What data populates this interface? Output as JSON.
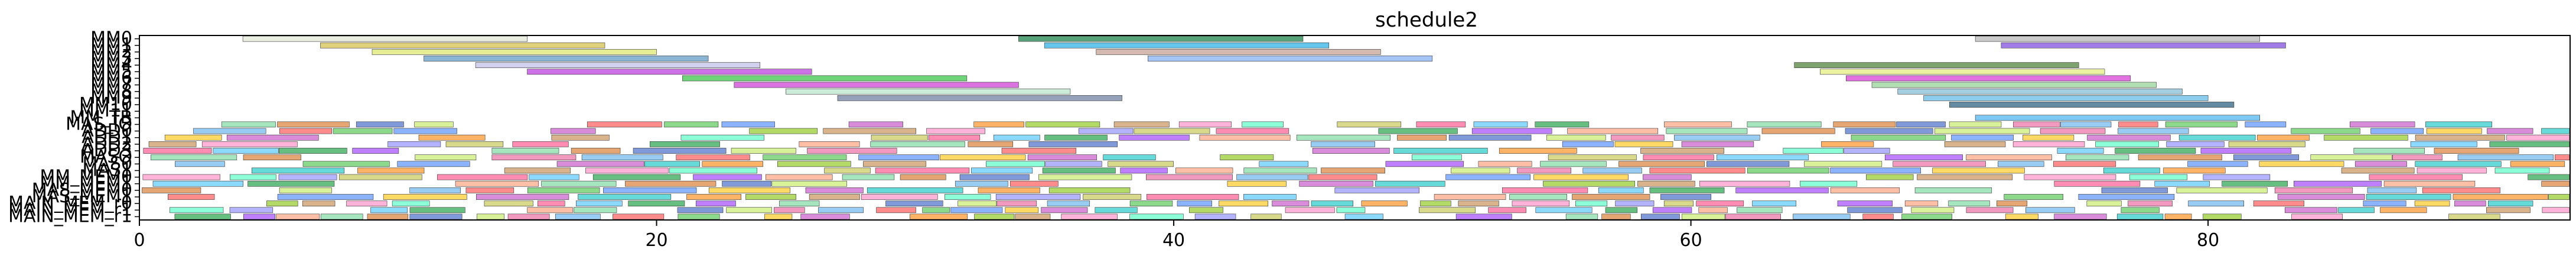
{
  "chart_data": {
    "type": "gantt",
    "title": "schedule2",
    "xlabel": "",
    "ylabel": "",
    "xlim": [
      0,
      94
    ],
    "grid": false,
    "x_ticks": [
      0,
      20,
      40,
      60,
      80
    ],
    "rows": [
      "MM0",
      "MM1",
      "MM2",
      "MM3",
      "MM4",
      "MM5",
      "MM6",
      "MM7",
      "MM8",
      "MM9",
      "MM10",
      "MM11",
      "MM_TB",
      "MAS_IO",
      "ADD0",
      "ADD1",
      "ADD2",
      "ADD3",
      "MASO",
      "MAS0",
      "MAS1",
      "MM_MEM0",
      "MM_MEM1",
      "MAS_MEM0",
      "MAS_MEM1",
      "MAIN_MEM_r0",
      "MAIN_MEM_r1",
      "MAIN_MEM_r1"
    ],
    "bars": [
      {
        "row": 0,
        "start": 4,
        "end": 15,
        "color": "#e5ead8"
      },
      {
        "row": 0,
        "start": 34,
        "end": 45,
        "color": "#2e8b57"
      },
      {
        "row": 0,
        "start": 71,
        "end": 82,
        "color": "#bdbdbd"
      },
      {
        "row": 1,
        "start": 7,
        "end": 18,
        "color": "#d7c65a"
      },
      {
        "row": 1,
        "start": 35,
        "end": 46,
        "color": "#3fb7e6"
      },
      {
        "row": 1,
        "start": 72,
        "end": 83,
        "color": "#8a5ae0"
      },
      {
        "row": 2,
        "start": 9,
        "end": 20,
        "color": "#dfe87a"
      },
      {
        "row": 2,
        "start": 37,
        "end": 48,
        "color": "#c9a79b"
      },
      {
        "row": 3,
        "start": 11,
        "end": 22,
        "color": "#6ea3c9"
      },
      {
        "row": 3,
        "start": 39,
        "end": 50,
        "color": "#8fb6f5"
      },
      {
        "row": 4,
        "start": 13,
        "end": 24,
        "color": "#c6c6e8"
      },
      {
        "row": 4,
        "start": 64,
        "end": 75,
        "color": "#5e8c4a"
      },
      {
        "row": 5,
        "start": 15,
        "end": 26,
        "color": "#c14ee0"
      },
      {
        "row": 5,
        "start": 65,
        "end": 76,
        "color": "#e7ef8a"
      },
      {
        "row": 6,
        "start": 21,
        "end": 32,
        "color": "#4cc95a"
      },
      {
        "row": 6,
        "start": 66,
        "end": 77,
        "color": "#d94fd7"
      },
      {
        "row": 7,
        "start": 23,
        "end": 34,
        "color": "#d14fd8"
      },
      {
        "row": 7,
        "start": 67,
        "end": 78,
        "color": "#9fd6a0"
      },
      {
        "row": 8,
        "start": 25,
        "end": 36,
        "color": "#bfe6cf"
      },
      {
        "row": 8,
        "start": 68,
        "end": 79,
        "color": "#8ec2d8"
      },
      {
        "row": 9,
        "start": 27,
        "end": 38,
        "color": "#7b8aa6"
      },
      {
        "row": 9,
        "start": 69,
        "end": 80,
        "color": "#6fc1e8"
      },
      {
        "row": 10,
        "start": 70,
        "end": 81,
        "color": "#3d6e8a"
      },
      {
        "row": 12,
        "start": 71,
        "end": 82,
        "color": "#5dbbf0"
      },
      {
        "row": 13,
        "start": 0,
        "end": 91,
        "color": "multi"
      },
      {
        "row": 14,
        "start": 0,
        "end": 94,
        "color": "multi"
      },
      {
        "row": 15,
        "start": 0,
        "end": 94,
        "color": "multi"
      },
      {
        "row": 16,
        "start": 0,
        "end": 94,
        "color": "multi"
      },
      {
        "row": 17,
        "start": 0,
        "end": 94,
        "color": "multi"
      },
      {
        "row": 18,
        "start": 0,
        "end": 94,
        "color": "multi"
      },
      {
        "row": 19,
        "start": 0,
        "end": 94,
        "color": "multi"
      },
      {
        "row": 20,
        "start": 0,
        "end": 94,
        "color": "multi"
      },
      {
        "row": 21,
        "start": 0,
        "end": 94,
        "color": "multi"
      },
      {
        "row": 22,
        "start": 0,
        "end": 94,
        "color": "multi"
      },
      {
        "row": 23,
        "start": 0,
        "end": 94,
        "color": "multi"
      },
      {
        "row": 24,
        "start": 0,
        "end": 94,
        "color": "multi"
      },
      {
        "row": 25,
        "start": 0,
        "end": 94,
        "color": "multi"
      },
      {
        "row": 26,
        "start": 0,
        "end": 94,
        "color": "multi"
      },
      {
        "row": 27,
        "start": 0,
        "end": 94,
        "color": "multi"
      }
    ]
  }
}
